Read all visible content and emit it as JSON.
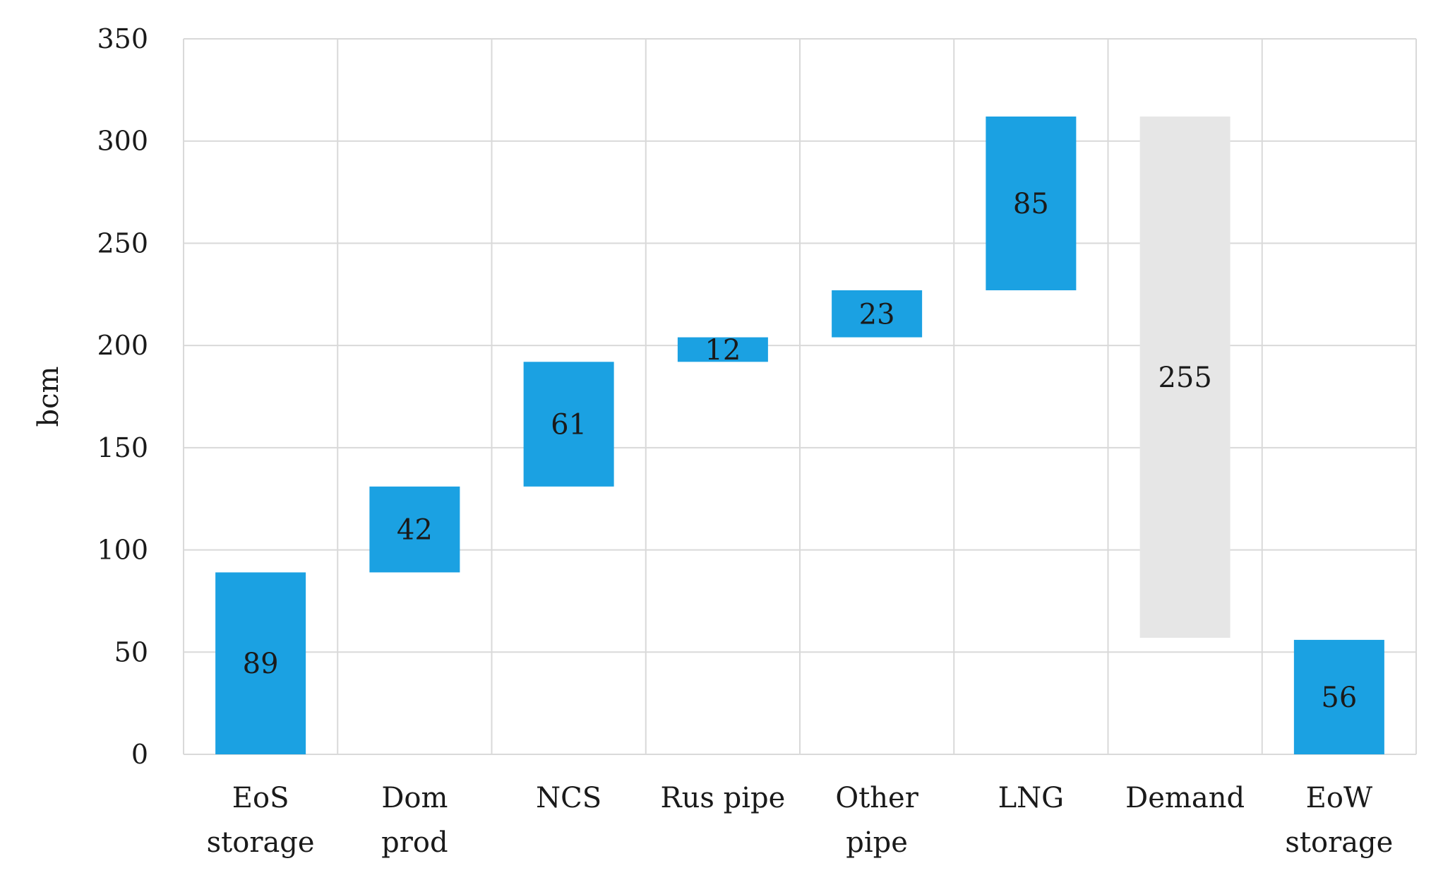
{
  "chart_data": {
    "type": "bar",
    "subtype": "waterfall",
    "title": "",
    "xlabel": "",
    "ylabel": "bcm",
    "ylim": [
      0,
      350
    ],
    "yticks": [
      0,
      50,
      100,
      150,
      200,
      250,
      300,
      350
    ],
    "grid": true,
    "legend": "none",
    "categories": [
      [
        "EoS",
        "storage"
      ],
      [
        "Dom",
        "prod"
      ],
      [
        "NCS"
      ],
      [
        "Rus pipe"
      ],
      [
        "Other",
        "pipe"
      ],
      [
        "LNG"
      ],
      [
        "Demand"
      ],
      [
        "EoW",
        "storage"
      ]
    ],
    "bars": [
      {
        "base": 0,
        "value": 89,
        "label": "89",
        "kind": "supply"
      },
      {
        "base": 89,
        "value": 42,
        "label": "42",
        "kind": "supply"
      },
      {
        "base": 131,
        "value": 61,
        "label": "61",
        "kind": "supply"
      },
      {
        "base": 192,
        "value": 12,
        "label": "12",
        "kind": "supply"
      },
      {
        "base": 204,
        "value": 23,
        "label": "23",
        "kind": "supply"
      },
      {
        "base": 227,
        "value": 85,
        "label": "85",
        "kind": "supply"
      },
      {
        "base": 57,
        "value": 255,
        "label": "255",
        "kind": "demand"
      },
      {
        "base": 0,
        "value": 56,
        "label": "56",
        "kind": "supply"
      }
    ],
    "colors": {
      "supply": "#1ba1e2",
      "demand": "#e6e6e6",
      "grid": "#d9d9d9",
      "text": "#1a1a1a"
    }
  }
}
